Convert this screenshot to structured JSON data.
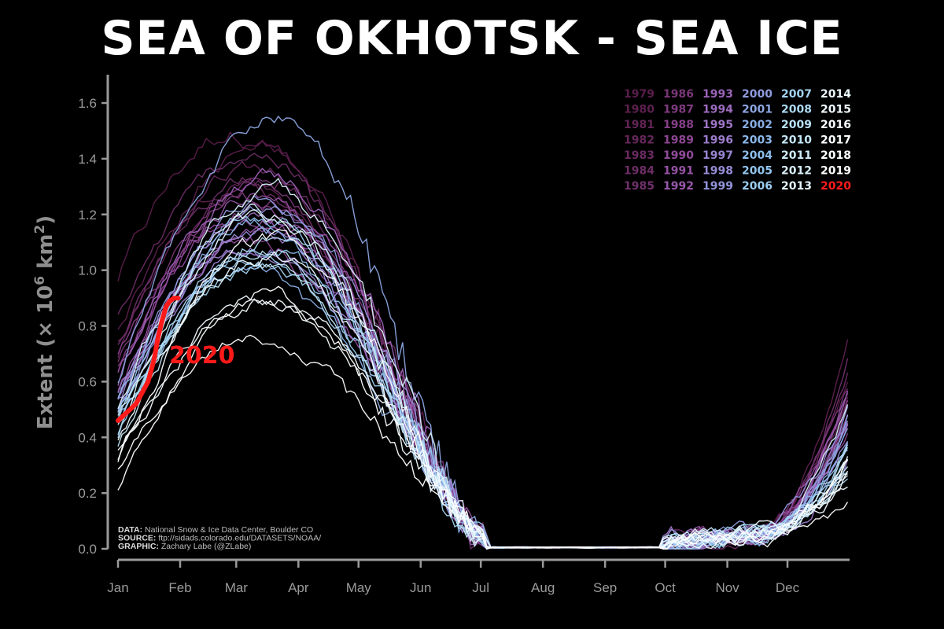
{
  "title": "SEA OF OKHOTSK - SEA ICE",
  "credits": [
    {
      "label": "DATA:",
      "text": "National Snow & Ice Data Center, Boulder CO"
    },
    {
      "label": "SOURCE:",
      "text": "ftp://sidads.colorado.edu/DATASETS/NOAA/"
    },
    {
      "label": "GRAPHIC:",
      "text": "Zachary Labe (@ZLabe)"
    }
  ],
  "highlight_color": "#ff1a1a",
  "chart_data": {
    "type": "line",
    "ylabel": "Extent (× 10⁶ km²)",
    "ylabel_parts": [
      "Extent (",
      "×",
      " 10",
      "6",
      " km",
      "2",
      ")"
    ],
    "ylim": [
      0,
      1.6
    ],
    "xlim": [
      0,
      365
    ],
    "y_ticks": [
      0.0,
      0.2,
      0.4,
      0.6,
      0.8,
      1.0,
      1.2,
      1.4,
      1.6
    ],
    "y_tick_labels": [
      "0.0",
      "0.2",
      "0.4",
      "0.6",
      "0.8",
      "1.0",
      "1.2",
      "1.4",
      "1.6"
    ],
    "x_ticks": [
      0,
      31,
      59,
      90,
      120,
      151,
      181,
      212,
      243,
      273,
      304,
      334
    ],
    "x_tick_labels": [
      "Jan",
      "Feb",
      "Mar",
      "Apr",
      "May",
      "Jun",
      "Jul",
      "Aug",
      "Sep",
      "Oct",
      "Nov",
      "Dec"
    ],
    "grid": false,
    "legend_position": "top-right",
    "legend_years": [
      1979,
      1980,
      1981,
      1982,
      1983,
      1984,
      1985,
      1986,
      1987,
      1988,
      1989,
      1990,
      1991,
      1992,
      1993,
      1994,
      1995,
      1996,
      1997,
      1998,
      1999,
      2000,
      2001,
      2002,
      2003,
      2004,
      2005,
      2006,
      2007,
      2008,
      2009,
      2010,
      2011,
      2012,
      2013,
      2014,
      2015,
      2016,
      2017,
      2018,
      2019,
      2020
    ],
    "legend_colors": [
      "#5a1d4c",
      "#5e2050",
      "#622455",
      "#66275b",
      "#6a2a61",
      "#6d2d66",
      "#70306b",
      "#7a3677",
      "#803b80",
      "#863f89",
      "#8c4592",
      "#914b9b",
      "#9552a3",
      "#9958ac",
      "#9c63b8",
      "#9f6cc0",
      "#9f75c6",
      "#9c7ccc",
      "#9984d1",
      "#968cd6",
      "#9394da",
      "#8f9cde",
      "#8ca6e2",
      "#89aee6",
      "#8ab6e9",
      "#8dbeec",
      "#93c5ee",
      "#9acdf0",
      "#a3d3f2",
      "#addaf3",
      "#b8e0f5",
      "#c3e6f7",
      "#ceebf8",
      "#d9f0fa",
      "#e4f5fc",
      "#ecf8fd",
      "#f2fbfe",
      "#f8fdff",
      "#fbfeff",
      "#fdffff",
      "#ffffff",
      "#ff1a1a"
    ],
    "series_params": [
      {
        "name": "1979",
        "start": 0.97,
        "peak": 1.5,
        "peakDay": 58,
        "decEnd": 0.66,
        "noise": 0.05
      },
      {
        "name": "1980",
        "start": 0.8,
        "peak": 1.44,
        "peakDay": 72,
        "decEnd": 0.79,
        "noise": 0.04
      },
      {
        "name": "1981",
        "start": 0.7,
        "peak": 1.33,
        "peakDay": 62,
        "decEnd": 0.48,
        "noise": 0.04
      },
      {
        "name": "1982",
        "start": 0.73,
        "peak": 1.38,
        "peakDay": 66,
        "decEnd": 0.55,
        "noise": 0.04
      },
      {
        "name": "1983",
        "start": 0.62,
        "peak": 1.3,
        "peakDay": 64,
        "decEnd": 0.46,
        "noise": 0.04
      },
      {
        "name": "1984",
        "start": 0.84,
        "peak": 1.42,
        "peakDay": 68,
        "decEnd": 0.62,
        "noise": 0.04
      },
      {
        "name": "1985",
        "start": 0.75,
        "peak": 1.35,
        "peakDay": 70,
        "decEnd": 0.7,
        "noise": 0.04
      },
      {
        "name": "1986",
        "start": 0.66,
        "peak": 1.3,
        "peakDay": 70,
        "decEnd": 0.6,
        "noise": 0.04
      },
      {
        "name": "1987",
        "start": 0.64,
        "peak": 1.26,
        "peakDay": 66,
        "decEnd": 0.52,
        "noise": 0.04
      },
      {
        "name": "1988",
        "start": 0.7,
        "peak": 1.22,
        "peakDay": 68,
        "decEnd": 0.54,
        "noise": 0.04
      },
      {
        "name": "1989",
        "start": 0.55,
        "peak": 1.1,
        "peakDay": 64,
        "decEnd": 0.42,
        "noise": 0.04
      },
      {
        "name": "1990",
        "start": 0.58,
        "peak": 1.2,
        "peakDay": 65,
        "decEnd": 0.5,
        "noise": 0.04
      },
      {
        "name": "1991",
        "start": 0.62,
        "peak": 1.27,
        "peakDay": 72,
        "decEnd": 0.56,
        "noise": 0.04
      },
      {
        "name": "1992",
        "start": 0.56,
        "peak": 1.17,
        "peakDay": 70,
        "decEnd": 0.58,
        "noise": 0.04
      },
      {
        "name": "1993",
        "start": 0.6,
        "peak": 1.34,
        "peakDay": 75,
        "decEnd": 0.45,
        "noise": 0.04
      },
      {
        "name": "1994",
        "start": 0.52,
        "peak": 1.2,
        "peakDay": 72,
        "decEnd": 0.4,
        "noise": 0.04
      },
      {
        "name": "1995",
        "start": 0.55,
        "peak": 1.14,
        "peakDay": 70,
        "decEnd": 0.44,
        "noise": 0.04
      },
      {
        "name": "1996",
        "start": 0.5,
        "peak": 1.1,
        "peakDay": 66,
        "decEnd": 0.35,
        "noise": 0.04
      },
      {
        "name": "1997",
        "start": 0.53,
        "peak": 1.08,
        "peakDay": 68,
        "decEnd": 0.48,
        "noise": 0.04
      },
      {
        "name": "1998",
        "start": 0.48,
        "peak": 1.15,
        "peakDay": 70,
        "decEnd": 0.4,
        "noise": 0.04
      },
      {
        "name": "1999",
        "start": 0.56,
        "peak": 1.22,
        "peakDay": 74,
        "decEnd": 0.52,
        "noise": 0.04
      },
      {
        "name": "2000",
        "start": 0.5,
        "peak": 1.25,
        "peakDay": 72,
        "decEnd": 0.45,
        "noise": 0.04
      },
      {
        "name": "2001",
        "start": 0.6,
        "peak": 1.55,
        "peakDay": 78,
        "decEnd": 0.5,
        "noise": 0.04
      },
      {
        "name": "2002",
        "start": 0.47,
        "peak": 1.0,
        "peakDay": 66,
        "decEnd": 0.42,
        "noise": 0.04
      },
      {
        "name": "2003",
        "start": 0.52,
        "peak": 1.16,
        "peakDay": 70,
        "decEnd": 0.38,
        "noise": 0.04
      },
      {
        "name": "2004",
        "start": 0.45,
        "peak": 1.07,
        "peakDay": 72,
        "decEnd": 0.36,
        "noise": 0.04
      },
      {
        "name": "2005",
        "start": 0.5,
        "peak": 1.2,
        "peakDay": 70,
        "decEnd": 0.3,
        "noise": 0.04
      },
      {
        "name": "2006",
        "start": 0.41,
        "peak": 1.05,
        "peakDay": 68,
        "decEnd": 0.33,
        "noise": 0.04
      },
      {
        "name": "2007",
        "start": 0.45,
        "peak": 1.0,
        "peakDay": 70,
        "decEnd": 0.28,
        "noise": 0.04
      },
      {
        "name": "2008",
        "start": 0.43,
        "peak": 1.12,
        "peakDay": 73,
        "decEnd": 0.4,
        "noise": 0.04
      },
      {
        "name": "2009",
        "start": 0.4,
        "peak": 1.08,
        "peakDay": 72,
        "decEnd": 0.35,
        "noise": 0.04
      },
      {
        "name": "2010",
        "start": 0.38,
        "peak": 1.02,
        "peakDay": 68,
        "decEnd": 0.32,
        "noise": 0.04
      },
      {
        "name": "2011",
        "start": 0.46,
        "peak": 1.2,
        "peakDay": 74,
        "decEnd": 0.3,
        "noise": 0.04
      },
      {
        "name": "2012",
        "start": 0.52,
        "peak": 1.3,
        "peakDay": 76,
        "decEnd": 0.52,
        "noise": 0.04
      },
      {
        "name": "2013",
        "start": 0.44,
        "peak": 1.18,
        "peakDay": 72,
        "decEnd": 0.34,
        "noise": 0.04
      },
      {
        "name": "2014",
        "start": 0.4,
        "peak": 1.05,
        "peakDay": 72,
        "decEnd": 0.26,
        "noise": 0.04
      },
      {
        "name": "2015",
        "start": 0.35,
        "peak": 0.92,
        "peakDay": 70,
        "decEnd": 0.24,
        "noise": 0.04
      },
      {
        "name": "2016",
        "start": 0.33,
        "peak": 0.88,
        "peakDay": 72,
        "decEnd": 0.3,
        "noise": 0.04
      },
      {
        "name": "2017",
        "start": 0.3,
        "peak": 1.1,
        "peakDay": 75,
        "decEnd": 0.28,
        "noise": 0.04
      },
      {
        "name": "2018",
        "start": 0.28,
        "peak": 0.76,
        "peakDay": 65,
        "decEnd": 0.16,
        "noise": 0.03
      },
      {
        "name": "2019",
        "start": 0.22,
        "peak": 0.92,
        "peakDay": 72,
        "decEnd": 0.35,
        "noise": 0.04
      }
    ],
    "highlight_series": {
      "name": "2020",
      "label": "2020",
      "x": [
        0,
        3,
        6,
        9,
        12,
        15,
        18,
        20,
        22,
        24,
        26,
        28,
        30
      ],
      "y": [
        0.46,
        0.48,
        0.5,
        0.52,
        0.56,
        0.6,
        0.68,
        0.76,
        0.82,
        0.87,
        0.89,
        0.9,
        0.9
      ]
    }
  }
}
